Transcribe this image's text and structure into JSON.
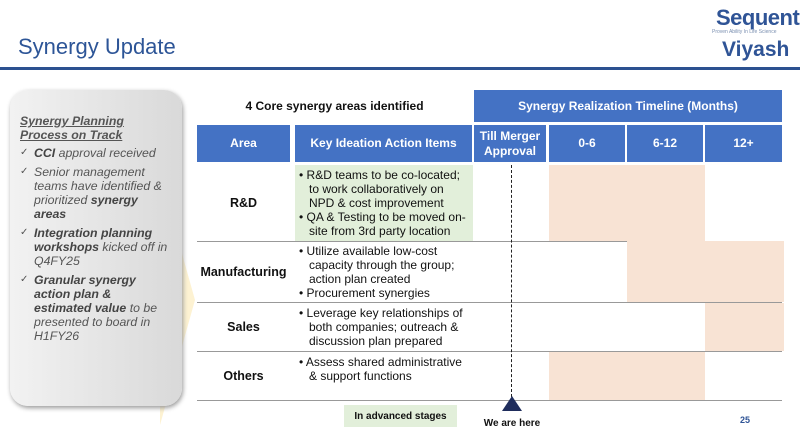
{
  "header": {
    "title": "Synergy Update",
    "logo_primary": "Sequent",
    "logo_primary_tagline": "Proven Ability In Life Science",
    "logo_secondary": "Viyash"
  },
  "panel": {
    "heading": "Synergy Planning Process on Track",
    "items": [
      {
        "bold": "CCI",
        "text": " approval received"
      },
      {
        "pre": "Senior management teams have identified & prioritized ",
        "bold": "synergy areas"
      },
      {
        "bold": "Integration planning workshops",
        "text": " kicked off in Q4FY25"
      },
      {
        "bold": "Granular synergy action plan & estimated value",
        "text": " to be presented to board in H1FY26"
      }
    ]
  },
  "table": {
    "left_title": "4 Core synergy areas identified",
    "timeline_title": "Synergy Realization Timeline (Months)",
    "columns": [
      "Area",
      "Key Ideation Action Items",
      "Till Merger Approval",
      "0-6",
      "6-12",
      "12+"
    ],
    "rows": [
      {
        "area": "R&D",
        "items": [
          "R&D teams to be co-located; to work collaboratively on NPD & cost improvement",
          "QA & Testing to be moved on-site from 3rd party location"
        ],
        "advanced": true,
        "timeline": [
          "0-6",
          "6-12"
        ]
      },
      {
        "area": "Manufacturing",
        "items": [
          "Utilize available low-cost capacity through the group; action plan created",
          "Procurement synergies"
        ],
        "advanced": false,
        "timeline": [
          "6-12",
          "12+"
        ]
      },
      {
        "area": "Sales",
        "items": [
          "Leverage key relationships of both companies; outreach & discussion plan prepared"
        ],
        "advanced": false,
        "timeline": [
          "12+"
        ]
      },
      {
        "area": "Others",
        "items": [
          "Assess shared administrative & support functions"
        ],
        "advanced": false,
        "timeline": [
          "0-6",
          "6-12"
        ]
      }
    ]
  },
  "legend": {
    "advanced_label": "In advanced stages",
    "marker_label": "We are here"
  },
  "page_number": "25",
  "colors": {
    "header_blue": "#4472c4",
    "timeline_shade": "#f8e3d4",
    "advanced_green": "#e2efda",
    "marker": "#1f2d5c"
  }
}
